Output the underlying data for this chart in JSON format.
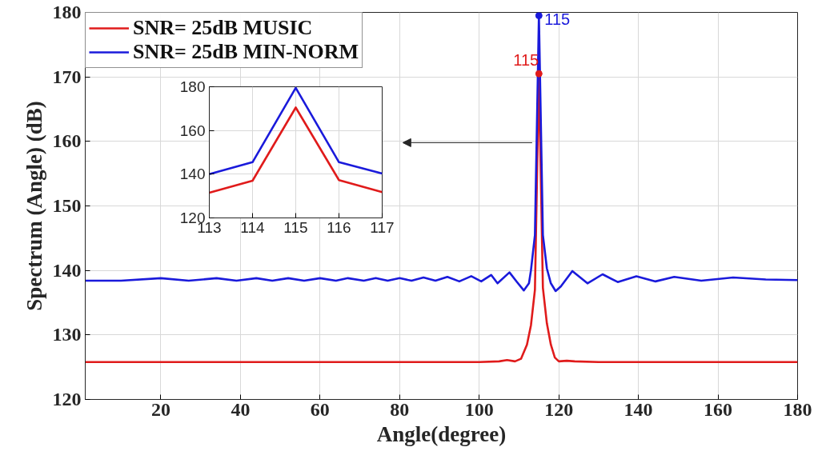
{
  "chart_data": [
    {
      "type": "line",
      "annotations": [
        {
          "text": "115",
          "x": 115,
          "y": 170.5
        },
        {
          "text": "115",
          "x": 115,
          "y": 179.5
        }
      ],
      "xlabel": "Angle(degree)",
      "ylabel": "Spectrum (Angle) (dB)",
      "xlim": [
        1,
        180
      ],
      "xticks": [
        20,
        40,
        60,
        80,
        100,
        120,
        140,
        160,
        180
      ],
      "ylim": [
        120,
        180
      ],
      "yticks": [
        120,
        130,
        140,
        150,
        160,
        170,
        180
      ],
      "grid": true,
      "legend": "top left",
      "series": [
        {
          "name": "SNR= 25dB MUSIC",
          "color": "#e01b1b",
          "x": [
            1,
            20,
            40,
            60,
            80,
            100,
            105,
            107,
            109,
            110.5,
            112,
            113,
            114,
            115,
            116,
            117,
            118,
            119,
            120,
            122,
            124,
            130,
            150,
            180
          ],
          "values": [
            125.8,
            125.8,
            125.8,
            125.8,
            125.8,
            125.8,
            125.9,
            126.1,
            125.9,
            126.3,
            128.5,
            131.5,
            137,
            170.5,
            137.3,
            131.8,
            128.5,
            126.5,
            125.9,
            126.0,
            125.9,
            125.8,
            125.8,
            125.8
          ]
        },
        {
          "name": "SNR= 25dB MIN-NORM",
          "color": "#1a1adb",
          "x": [
            1,
            10,
            20,
            27,
            34,
            39,
            44,
            48,
            52,
            56,
            60,
            64,
            67,
            71,
            74,
            77,
            80,
            83,
            86,
            89,
            92,
            95,
            98,
            100.5,
            103,
            104.6,
            107.6,
            109.5,
            111.2,
            112.5,
            113,
            114,
            115,
            116,
            117,
            118,
            119.2,
            120.5,
            123.4,
            127.2,
            131,
            134.8,
            139.5,
            144.3,
            149,
            155.8,
            163.8,
            172,
            180
          ],
          "values": [
            138.4,
            138.4,
            138.8,
            138.4,
            138.8,
            138.4,
            138.8,
            138.4,
            138.8,
            138.4,
            138.8,
            138.4,
            138.8,
            138.4,
            138.8,
            138.4,
            138.8,
            138.4,
            138.9,
            138.4,
            139.0,
            138.3,
            139.1,
            138.3,
            139.3,
            138.0,
            139.7,
            138.2,
            136.9,
            138.0,
            140,
            145.5,
            179.5,
            145.5,
            140.3,
            138.0,
            136.8,
            137.5,
            139.9,
            138.0,
            139.4,
            138.2,
            139.1,
            138.3,
            139.0,
            138.4,
            138.9,
            138.6,
            138.5
          ]
        },
        {
          "type": "scatter",
          "marker": "circle",
          "color": "#e01b1b",
          "x": [
            115
          ],
          "values": [
            170.5
          ]
        },
        {
          "type": "scatter",
          "marker": "circle",
          "color": "#1a1adb",
          "x": [
            115
          ],
          "values": [
            179.5
          ]
        }
      ]
    },
    {
      "type": "line",
      "xlim": [
        113,
        117
      ],
      "xticks": [
        113,
        114,
        115,
        116,
        117
      ],
      "ylim": [
        120,
        180
      ],
      "yticks": [
        120,
        140,
        160,
        180
      ],
      "grid": true,
      "series": [
        {
          "color": "#e01b1b",
          "x": [
            113,
            114,
            115,
            116,
            117
          ],
          "values": [
            131.5,
            137,
            170.5,
            137.3,
            131.8
          ]
        },
        {
          "color": "#1a1adb",
          "x": [
            113,
            114,
            115,
            116,
            117
          ],
          "values": [
            140,
            145.5,
            179.5,
            145.5,
            140.3
          ]
        }
      ]
    }
  ]
}
